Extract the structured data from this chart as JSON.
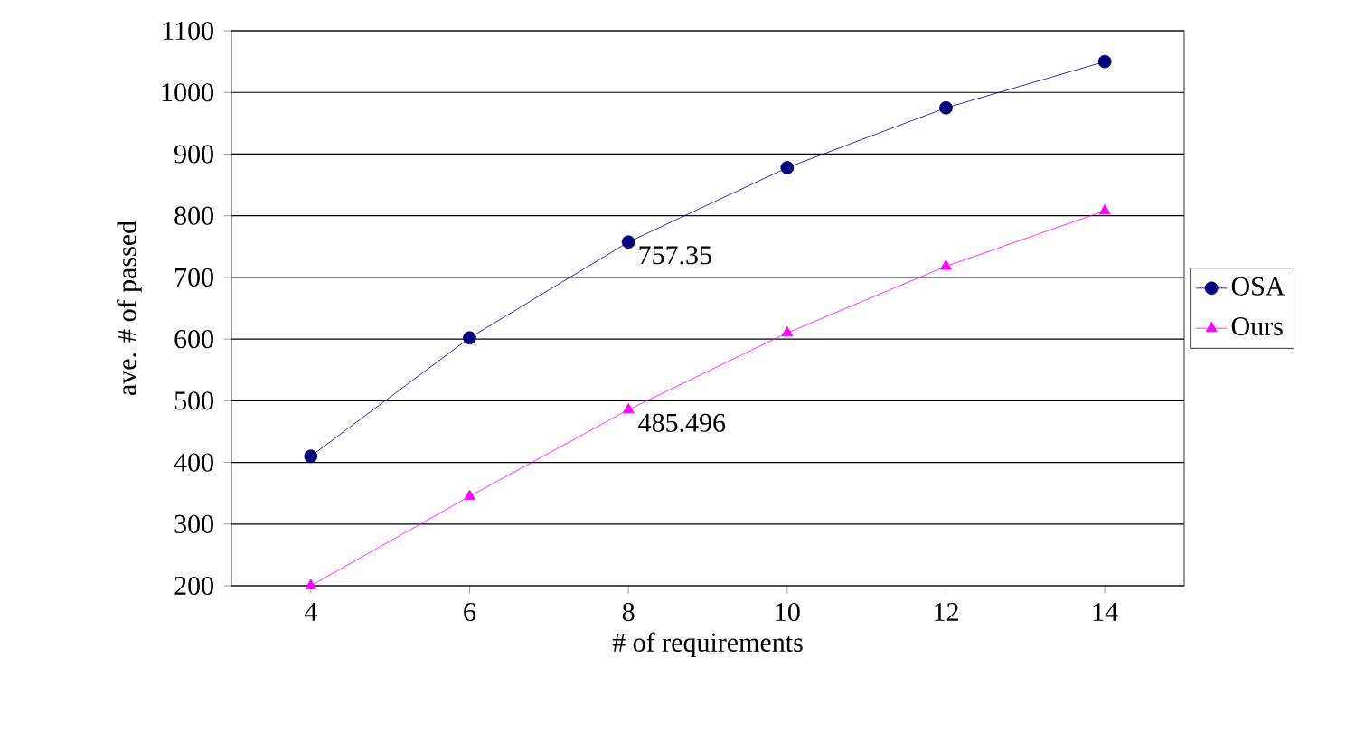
{
  "chart_data": {
    "type": "line",
    "xlabel": "# of requirements",
    "ylabel": "ave. # of passed",
    "categories": [
      "4",
      "6",
      "8",
      "10",
      "12",
      "14"
    ],
    "series": [
      {
        "name": "OSA",
        "color": "#000080",
        "marker": "circle",
        "values": [
          410,
          602,
          757.35,
          878,
          975,
          1050
        ]
      },
      {
        "name": "Ours",
        "color": "#ff00ff",
        "marker": "triangle",
        "values": [
          200,
          345,
          485.496,
          610,
          718,
          808
        ]
      }
    ],
    "ylim": [
      200,
      1100
    ],
    "yticks": [
      200,
      300,
      400,
      500,
      600,
      700,
      800,
      900,
      1000,
      1100
    ],
    "grid": "y",
    "legend": "right",
    "annotations": [
      {
        "text": "757.35",
        "x": "8",
        "y": 757.35
      },
      {
        "text": "485.496",
        "x": "8",
        "y": 485.496
      }
    ]
  }
}
